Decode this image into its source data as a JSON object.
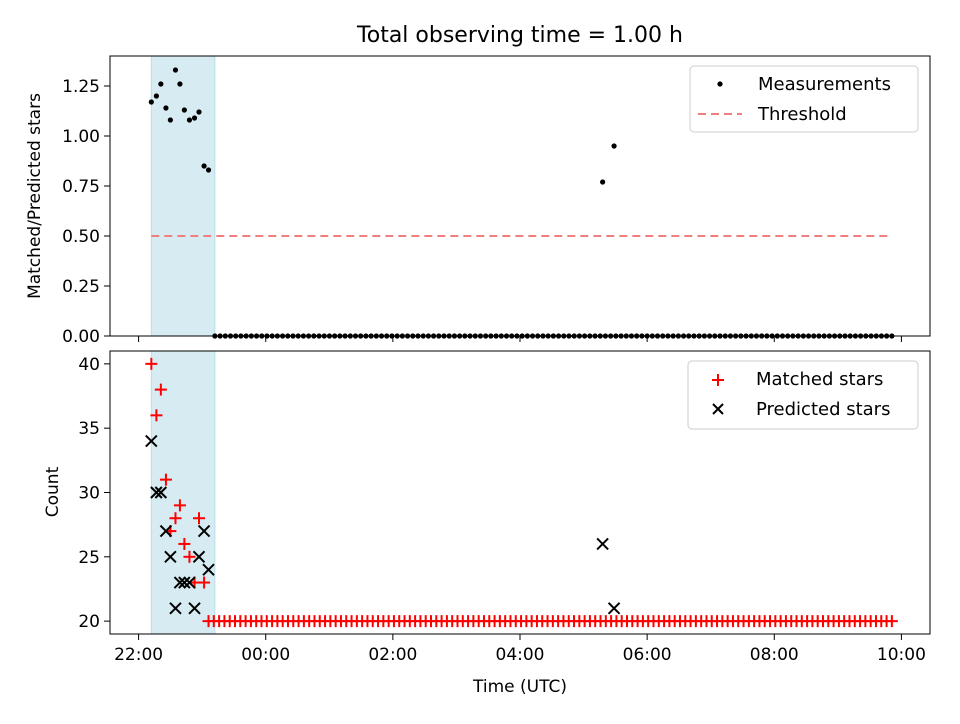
{
  "chart_data": [
    {
      "type": "scatter",
      "title": "Total observing time = 1.00 h",
      "ylabel": "Matched/Predicted stars",
      "xlabel": "",
      "x_unit": "hours UTC (values >= 24 roll over to next day)",
      "xlim": [
        21.55,
        34.45
      ],
      "ylim": [
        0.0,
        1.4
      ],
      "yticks": [
        "0.00",
        "0.25",
        "0.50",
        "0.75",
        "1.00",
        "1.25"
      ],
      "shaded_span": [
        22.2,
        23.2
      ],
      "legend_position": "top-right",
      "legend": [
        "Measurements",
        "Threshold"
      ],
      "series": [
        {
          "name": "Measurements",
          "marker": "dot",
          "color": "#000000",
          "points": [
            [
              22.2,
              1.17
            ],
            [
              22.28,
              1.2
            ],
            [
              22.35,
              1.26
            ],
            [
              22.43,
              1.14
            ],
            [
              22.5,
              1.08
            ],
            [
              22.58,
              1.33
            ],
            [
              22.65,
              1.26
            ],
            [
              22.72,
              1.13
            ],
            [
              22.8,
              1.08
            ],
            [
              22.88,
              1.09
            ],
            [
              22.95,
              1.12
            ],
            [
              23.03,
              0.85
            ],
            [
              23.1,
              0.83
            ],
            [
              29.3,
              0.77
            ],
            [
              29.48,
              0.95
            ]
          ],
          "zero_run": {
            "x_start": 23.2,
            "x_end": 33.85,
            "y": 0.0,
            "count": 131
          }
        },
        {
          "name": "Threshold",
          "type": "line",
          "style": "dashed",
          "color": "#f08080",
          "points": [
            [
              22.2,
              0.5
            ],
            [
              33.85,
              0.5
            ]
          ]
        }
      ]
    },
    {
      "type": "scatter",
      "title": "",
      "ylabel": "Count",
      "xlabel": "Time (UTC)",
      "x_unit": "hours UTC (values >= 24 roll over to next day)",
      "xlim": [
        21.55,
        34.45
      ],
      "ylim": [
        19.0,
        41.0
      ],
      "yticks": [
        "20",
        "25",
        "30",
        "35",
        "40"
      ],
      "xticks": [
        "22:00",
        "00:00",
        "02:00",
        "04:00",
        "06:00",
        "08:00",
        "10:00"
      ],
      "shaded_span": [
        22.2,
        23.2
      ],
      "legend_position": "top-right",
      "legend": [
        "Matched stars",
        "Predicted stars"
      ],
      "series": [
        {
          "name": "Matched stars",
          "marker": "plus",
          "color": "#ff0000",
          "points": [
            [
              22.2,
              40
            ],
            [
              22.28,
              36
            ],
            [
              22.35,
              38
            ],
            [
              22.43,
              31
            ],
            [
              22.5,
              27
            ],
            [
              22.58,
              28
            ],
            [
              22.65,
              29
            ],
            [
              22.72,
              26
            ],
            [
              22.8,
              25
            ],
            [
              22.88,
              23
            ],
            [
              22.95,
              28
            ],
            [
              23.03,
              23
            ]
          ],
          "constant_run": {
            "x_start": 23.1,
            "x_end": 33.85,
            "y": 20,
            "count": 130
          }
        },
        {
          "name": "Predicted stars",
          "marker": "x",
          "color": "#000000",
          "points": [
            [
              22.2,
              34
            ],
            [
              22.28,
              30
            ],
            [
              22.35,
              30
            ],
            [
              22.43,
              27
            ],
            [
              22.5,
              25
            ],
            [
              22.58,
              21
            ],
            [
              22.65,
              23
            ],
            [
              22.72,
              23
            ],
            [
              22.8,
              23
            ],
            [
              22.88,
              21
            ],
            [
              22.95,
              25
            ],
            [
              23.03,
              27
            ],
            [
              23.1,
              24
            ],
            [
              29.3,
              26
            ],
            [
              29.48,
              21
            ]
          ]
        }
      ]
    }
  ]
}
